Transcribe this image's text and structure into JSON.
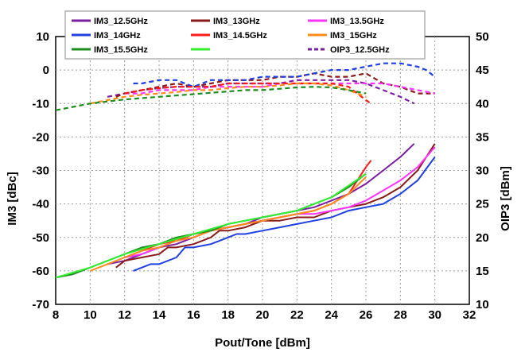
{
  "chart_data": {
    "type": "line",
    "title": "",
    "xlabel": "Pout/Tone [dBm]",
    "ylabel": "IM3 [dBc]",
    "y2label": "OIP3 [dBm]",
    "xlim": [
      8,
      32
    ],
    "ylim": [
      -70,
      10
    ],
    "y2lim": [
      10,
      50
    ],
    "xticks": [
      8,
      10,
      12,
      14,
      16,
      18,
      20,
      22,
      24,
      26,
      28,
      30,
      32
    ],
    "yticks": [
      10,
      0,
      -10,
      -20,
      -30,
      -40,
      -50,
      -60,
      -70
    ],
    "y2ticks": [
      50,
      45,
      40,
      35,
      30,
      25,
      20,
      15,
      10
    ],
    "grid": true,
    "legend_position": "top",
    "series": [
      {
        "name": "IM3_12.5GHz",
        "axis": "left",
        "style": "solid",
        "color": "#7b1fa2",
        "x": [
          11,
          12,
          13,
          14,
          15,
          16,
          17,
          18,
          19,
          20,
          21,
          22,
          23,
          24,
          25,
          26,
          27,
          28,
          28.8
        ],
        "y": [
          -58,
          -57,
          -55,
          -53,
          -52,
          -50,
          -48,
          -47,
          -46,
          -44,
          -43,
          -42,
          -41,
          -39,
          -37,
          -34,
          -30,
          -26,
          -22
        ]
      },
      {
        "name": "IM3_13GHz",
        "axis": "left",
        "style": "solid",
        "color": "#8b1a1a",
        "x": [
          11.5,
          12,
          13,
          14,
          14.5,
          15,
          16,
          17,
          17.5,
          18,
          19,
          20,
          21,
          22,
          23,
          24,
          25,
          26,
          27,
          28,
          29,
          30
        ],
        "y": [
          -59,
          -57,
          -56,
          -55,
          -53,
          -53,
          -52,
          -50,
          -48,
          -48,
          -47,
          -45,
          -45,
          -44,
          -44,
          -42,
          -41,
          -40,
          -38,
          -35,
          -30,
          -22
        ]
      },
      {
        "name": "IM3_13.5GHz",
        "axis": "left",
        "style": "solid",
        "color": "#ff33ff",
        "x": [
          12,
          13,
          14,
          15,
          16,
          17,
          18,
          19,
          20,
          21,
          22,
          23,
          24,
          25,
          26,
          27,
          28,
          29,
          30
        ],
        "y": [
          -56,
          -55,
          -53,
          -51,
          -50,
          -48,
          -47,
          -46,
          -45,
          -44,
          -43,
          -43,
          -42,
          -41,
          -39,
          -36,
          -33,
          -29,
          -23
        ]
      },
      {
        "name": "IM3_14GHz",
        "axis": "left",
        "style": "solid",
        "color": "#1f3fe0",
        "x": [
          12.5,
          13,
          13.5,
          14,
          15,
          15.5,
          16,
          17,
          18,
          18.5,
          19,
          20,
          21,
          22,
          23,
          24,
          25,
          26,
          27,
          28,
          29,
          30
        ],
        "y": [
          -60,
          -59,
          -58,
          -58,
          -56,
          -53,
          -53,
          -52,
          -50,
          -49,
          -49,
          -48,
          -47,
          -46,
          -45,
          -44,
          -42,
          -41,
          -40,
          -37,
          -33,
          -26
        ]
      },
      {
        "name": "IM3_14.5GHz",
        "axis": "left",
        "style": "solid",
        "color": "#ff1a1a",
        "x": [
          12,
          13,
          14,
          15,
          16,
          17,
          18,
          19,
          20,
          21,
          22,
          23,
          24,
          25,
          26,
          26.3
        ],
        "y": [
          -56,
          -54,
          -52,
          -51,
          -49,
          -48,
          -47,
          -46,
          -45,
          -44,
          -43,
          -42,
          -40,
          -37,
          -29,
          -27
        ]
      },
      {
        "name": "IM3_15GHz",
        "axis": "left",
        "style": "solid",
        "color": "#ff8c1a",
        "x": [
          10,
          11,
          12,
          13,
          14,
          15,
          16,
          17,
          18,
          19,
          20,
          21,
          22,
          23,
          24,
          25,
          26
        ],
        "y": [
          -60,
          -58,
          -56,
          -54,
          -53,
          -51,
          -50,
          -48,
          -47,
          -46,
          -45,
          -44,
          -43,
          -42,
          -40,
          -37,
          -32
        ]
      },
      {
        "name": "IM3_15.5GHz",
        "axis": "left",
        "style": "solid",
        "color": "#1e8c1e",
        "x": [
          8,
          9,
          10,
          11,
          12,
          13,
          14,
          15,
          16,
          17,
          18,
          19,
          20,
          21,
          22,
          23,
          24,
          25,
          26
        ],
        "y": [
          -62,
          -61,
          -59,
          -57,
          -55,
          -53,
          -52,
          -50,
          -49,
          -48,
          -46,
          -45,
          -44,
          -43,
          -42,
          -40,
          -38,
          -35,
          -31
        ]
      },
      {
        "name": "",
        "axis": "left",
        "style": "solid",
        "color": "#33ee33",
        "x": [
          8,
          10,
          12,
          14,
          16,
          18,
          20,
          22,
          24,
          26
        ],
        "y": [
          -62,
          -59,
          -55,
          -52,
          -49,
          -46,
          -44,
          -42,
          -38,
          -31
        ]
      },
      {
        "name": "OIP3_12.5GHz",
        "axis": "right",
        "style": "dashed",
        "color": "#7b1fa2",
        "x": [
          11,
          12,
          13,
          14,
          15,
          16,
          17,
          18,
          19,
          20,
          21,
          22,
          23,
          24,
          25,
          26,
          27,
          28,
          28.8
        ],
        "y": [
          41,
          41.5,
          42,
          42.3,
          42.5,
          42.5,
          42.5,
          43,
          43,
          43,
          43,
          43.5,
          43.5,
          43.5,
          43.5,
          43,
          42,
          41,
          40
        ]
      },
      {
        "name": "",
        "axis": "right",
        "style": "dashed",
        "color": "#8b1a1a",
        "x": [
          11.5,
          12,
          13,
          14,
          15,
          16,
          17,
          18,
          19,
          20,
          21,
          22,
          23,
          24,
          25,
          26,
          27,
          28,
          29,
          30
        ],
        "y": [
          41,
          41.5,
          42,
          42.5,
          43,
          42.5,
          43,
          43.5,
          43.5,
          43.5,
          44,
          44,
          44.5,
          44,
          44,
          44.5,
          43,
          42.5,
          41.5,
          41.5
        ]
      },
      {
        "name": "",
        "axis": "right",
        "style": "dashed",
        "color": "#ff33ff",
        "x": [
          12,
          13,
          14,
          15,
          16,
          17,
          18,
          19,
          20,
          21,
          22,
          23,
          24,
          25,
          26,
          27,
          28,
          29,
          30
        ],
        "y": [
          41.5,
          41.5,
          42,
          42,
          42,
          42.5,
          42.5,
          42.5,
          42.5,
          43,
          43,
          43,
          43,
          43,
          43,
          43,
          42.5,
          42,
          41.5
        ]
      },
      {
        "name": "",
        "axis": "right",
        "style": "dashed",
        "color": "#1f3fe0",
        "x": [
          12.5,
          13,
          14,
          14.5,
          15,
          16,
          17,
          18,
          19,
          20,
          21,
          22,
          23,
          24,
          25,
          26,
          27,
          28,
          29,
          29.5,
          30
        ],
        "y": [
          43,
          43,
          43.5,
          43.5,
          43.5,
          42.5,
          43.5,
          43.5,
          43.5,
          44,
          44,
          44,
          44.5,
          45,
          45,
          45.5,
          46,
          46,
          45.5,
          45,
          44
        ]
      },
      {
        "name": "",
        "axis": "right",
        "style": "dashed",
        "color": "#ff1a1a",
        "x": [
          12,
          13,
          14,
          15,
          16,
          17,
          18,
          19,
          20,
          21,
          22,
          23,
          24,
          25,
          26,
          26.3
        ],
        "y": [
          41.5,
          42,
          42.3,
          42.5,
          42.5,
          42.5,
          43,
          43,
          43,
          43,
          43,
          43,
          43,
          42.5,
          40.5,
          40
        ]
      },
      {
        "name": "",
        "axis": "right",
        "style": "dashed",
        "color": "#ff8c1a",
        "x": [
          10,
          11,
          12,
          13,
          14,
          15,
          16,
          17,
          18,
          19,
          20,
          21,
          22,
          23,
          24,
          25,
          26
        ],
        "y": [
          40,
          40.5,
          41,
          41.3,
          41.5,
          41.7,
          42,
          42,
          42.3,
          42.5,
          42.5,
          42.7,
          43,
          43,
          42.7,
          42,
          41
        ]
      },
      {
        "name": "",
        "axis": "right",
        "style": "dashed",
        "color": "#1e8c1e",
        "x": [
          8,
          9,
          10,
          11,
          12,
          13,
          14,
          15,
          16,
          17,
          18,
          19,
          20,
          21,
          22,
          23,
          24,
          25,
          26
        ],
        "y": [
          39,
          39.5,
          40,
          40.3,
          40.6,
          40.8,
          41,
          41.2,
          41.4,
          41.6,
          41.8,
          42,
          42,
          42.2,
          42.4,
          42.5,
          42.4,
          42,
          41.5
        ]
      }
    ]
  }
}
